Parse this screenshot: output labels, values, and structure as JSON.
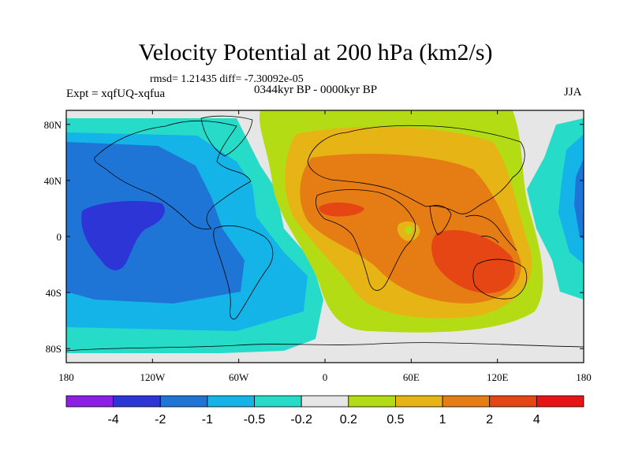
{
  "title": "Velocity Potential at 200 hPa (km2/s)",
  "stats_line": "rmsd= 1.21435 diff= -7.30092e-05",
  "experiment": "Expt = xqfUQ-xqfua",
  "period": "0344kyr BP - 0000kyr BP",
  "season": "JJA",
  "map": {
    "projection": "cylindrical equidistant",
    "lon_range": [
      -180,
      180
    ],
    "lat_range": [
      -90,
      90
    ],
    "lon_ticks": [
      "180",
      "120W",
      "60W",
      "0",
      "60E",
      "120E",
      "180"
    ],
    "lat_ticks": [
      "80N",
      "40N",
      "0",
      "40S",
      "80S"
    ]
  },
  "colorbar": {
    "labels": [
      "-4",
      "-2",
      "-1",
      "-0.5",
      "-0.2",
      "0.2",
      "0.5",
      "1",
      "2",
      "4"
    ],
    "colors": [
      "#8c1ee6",
      "#2d35d6",
      "#1f75d6",
      "#14b4e8",
      "#26dcc8",
      "#e6e6e6",
      "#b4dc14",
      "#e6b414",
      "#e67d14",
      "#e64614",
      "#e61414"
    ]
  }
}
